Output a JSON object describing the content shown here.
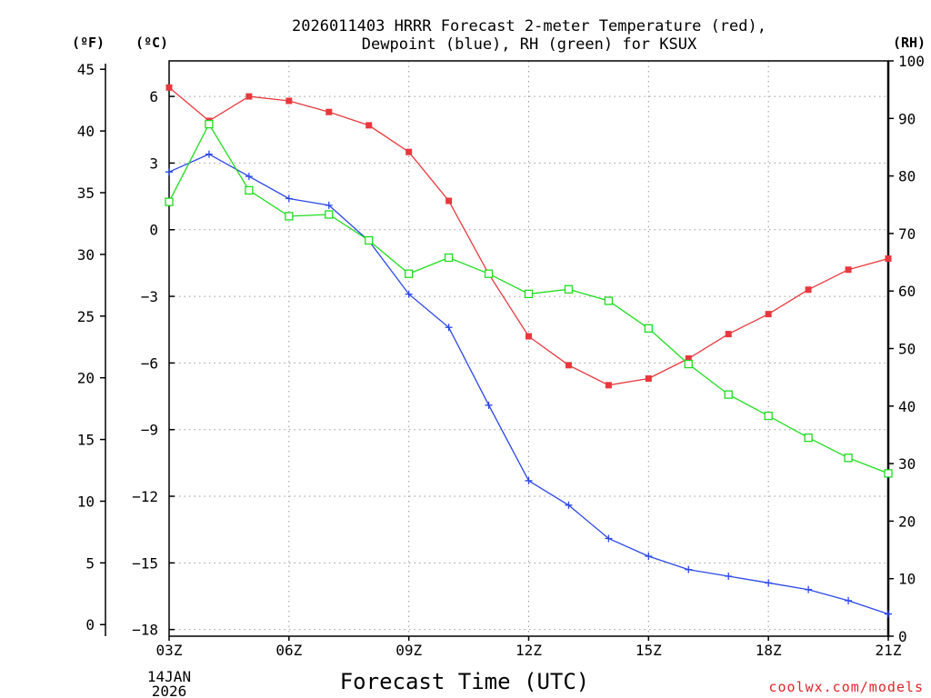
{
  "title_line1": "2026011403 HRRR Forecast 2-meter Temperature (red),",
  "title_line2": "Dewpoint (blue), RH (green) for KSUX",
  "unit_f": "(ºF)",
  "unit_c": "(ºC)",
  "unit_rh": "(RH)",
  "xlabel": "Forecast Time (UTC)",
  "date_label_1": "14JAN",
  "date_label_2": "2026",
  "credit": "coolwx.com/models",
  "colors": {
    "temperature": "#e8383d",
    "dewpoint": "#2b47e8",
    "rh": "#1fdc1f"
  },
  "chart_data": {
    "type": "line",
    "title": "2026011403 HRRR Forecast 2-meter Temperature (red), Dewpoint (blue), RH (green) for KSUX",
    "xlabel": "Forecast Time (UTC)",
    "x_hours": [
      3,
      4,
      5,
      6,
      7,
      8,
      9,
      10,
      11,
      12,
      13,
      14,
      15,
      16,
      17,
      18,
      19,
      20,
      21
    ],
    "x_ticks": [
      3,
      6,
      9,
      12,
      15,
      18,
      21
    ],
    "x_tick_labels": [
      "03Z",
      "06Z",
      "09Z",
      "12Z",
      "15Z",
      "18Z",
      "21Z"
    ],
    "xlim": [
      3,
      21
    ],
    "y_celsius": {
      "ylim": [
        -18.3,
        7.6
      ],
      "ticks": [
        6,
        3,
        0,
        -3,
        -6,
        -9,
        -12,
        -15,
        -18
      ],
      "tick_labels": [
        "6",
        "3",
        "0",
        "−3",
        "−6",
        "−9",
        "−12",
        "−15",
        "−18"
      ]
    },
    "y_fahrenheit": {
      "ticks": [
        45,
        40,
        35,
        30,
        25,
        20,
        15,
        10,
        5,
        0
      ],
      "tick_labels": [
        "45",
        "40",
        "35",
        "30",
        "25",
        "20",
        "15",
        "10",
        "5",
        "0"
      ]
    },
    "y_rh": {
      "ylim": [
        0,
        100
      ],
      "ticks": [
        100,
        90,
        80,
        70,
        60,
        50,
        40,
        30,
        20,
        10,
        0
      ],
      "tick_labels": [
        "100",
        "90",
        "80",
        "70",
        "60",
        "50",
        "40",
        "30",
        "20",
        "10",
        "0"
      ]
    },
    "series": [
      {
        "name": "2-meter Temperature",
        "axis": "celsius",
        "marker": "filled-square",
        "values": [
          6.4,
          4.9,
          6.0,
          5.8,
          5.3,
          4.7,
          3.5,
          1.3,
          -2.0,
          -4.8,
          -6.1,
          -7.0,
          -6.7,
          -5.8,
          -4.7,
          -3.8,
          -2.7,
          -1.8,
          -1.3
        ]
      },
      {
        "name": "Dewpoint",
        "axis": "celsius",
        "marker": "plus",
        "values": [
          2.6,
          3.4,
          2.4,
          1.4,
          1.1,
          -0.5,
          -2.9,
          -4.4,
          -7.9,
          -11.3,
          -12.4,
          -13.9,
          -14.7,
          -15.3,
          -15.6,
          -15.9,
          -16.2,
          -16.7,
          -17.3
        ]
      },
      {
        "name": "RH",
        "axis": "rh",
        "marker": "open-square",
        "values": [
          75.5,
          89.0,
          77.5,
          73.0,
          73.3,
          68.8,
          63.0,
          65.8,
          63.0,
          59.5,
          60.3,
          58.3,
          53.5,
          47.3,
          42.0,
          38.3,
          34.5,
          31.0,
          28.3
        ]
      }
    ]
  }
}
